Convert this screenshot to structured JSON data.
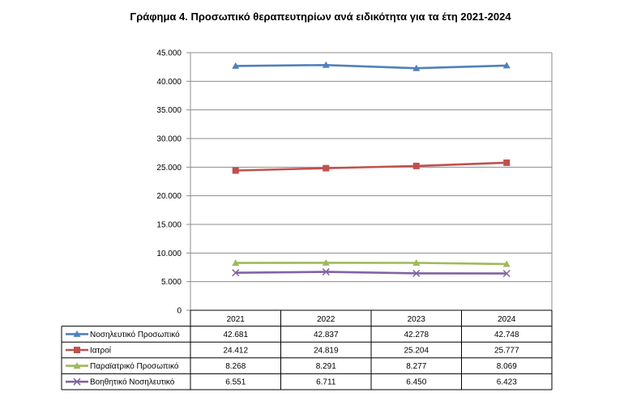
{
  "chart_data": {
    "type": "line",
    "title": "Γράφημα 4. Προσωπικό θεραπευτηρίων ανά ειδικότητα για τα έτη 2021-2024",
    "categories": [
      "2021",
      "2022",
      "2023",
      "2024"
    ],
    "ylim": [
      0,
      45000
    ],
    "yticks": [
      "0",
      "5.000",
      "10.000",
      "15.000",
      "20.000",
      "25.000",
      "30.000",
      "35.000",
      "40.000",
      "45.000"
    ],
    "grid": true,
    "legend": "data-table",
    "series": [
      {
        "name": "Νοσηλευτικό Προσωπικό",
        "values": [
          42681,
          42837,
          42278,
          42748
        ],
        "labels": [
          "42.681",
          "42.837",
          "42.278",
          "42.748"
        ],
        "color": "#4F81BD",
        "marker": "triangle"
      },
      {
        "name": "Ιατροί",
        "values": [
          24412,
          24819,
          25204,
          25777
        ],
        "labels": [
          "24.412",
          "24.819",
          "25.204",
          "25.777"
        ],
        "color": "#C0504D",
        "marker": "square"
      },
      {
        "name": "Παραϊατρικό Προσωπικό",
        "values": [
          8268,
          8291,
          8277,
          8069
        ],
        "labels": [
          "8.268",
          "8.291",
          "8.277",
          "8.069"
        ],
        "color": "#9BBB59",
        "marker": "triangle"
      },
      {
        "name": "Βοηθητικό Νοσηλευτικό",
        "values": [
          6551,
          6711,
          6450,
          6423
        ],
        "labels": [
          "6.551",
          "6.711",
          "6.450",
          "6.423"
        ],
        "color": "#8064A2",
        "marker": "x"
      }
    ]
  }
}
